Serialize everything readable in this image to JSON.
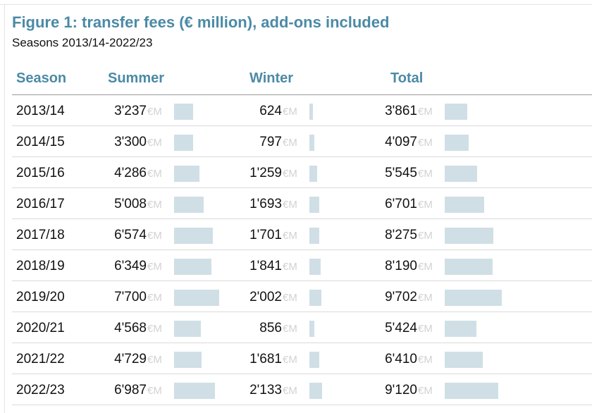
{
  "chart_data": {
    "type": "table",
    "title": "Figure 1: transfer fees (€ million), add-ons included",
    "subtitle": "Seasons 2013/14-2022/23",
    "columns": [
      "Season",
      "Summer",
      "Winter",
      "Total"
    ],
    "unit_label": "€M",
    "bar_color": "#d0dfe6",
    "header_color": "#4b8aa6",
    "rows": [
      {
        "season": "2013/14",
        "summer": "3'237",
        "winter": "624",
        "total": "3'861"
      },
      {
        "season": "2014/15",
        "summer": "3'300",
        "winter": "797",
        "total": "4'097"
      },
      {
        "season": "2015/16",
        "summer": "4'286",
        "winter": "1'259",
        "total": "5'545"
      },
      {
        "season": "2016/17",
        "summer": "5'008",
        "winter": "1'693",
        "total": "6'701"
      },
      {
        "season": "2017/18",
        "summer": "6'574",
        "winter": "1'701",
        "total": "8'275"
      },
      {
        "season": "2018/19",
        "summer": "6'349",
        "winter": "1'841",
        "total": "8'190"
      },
      {
        "season": "2019/20",
        "summer": "7'700",
        "winter": "2'002",
        "total": "9'702"
      },
      {
        "season": "2020/21",
        "summer": "4'568",
        "winter": "856",
        "total": "5'424"
      },
      {
        "season": "2021/22",
        "summer": "4'729",
        "winter": "1'681",
        "total": "6'410"
      },
      {
        "season": "2022/23",
        "summer": "6'987",
        "winter": "2'133",
        "total": "9'120"
      }
    ]
  }
}
